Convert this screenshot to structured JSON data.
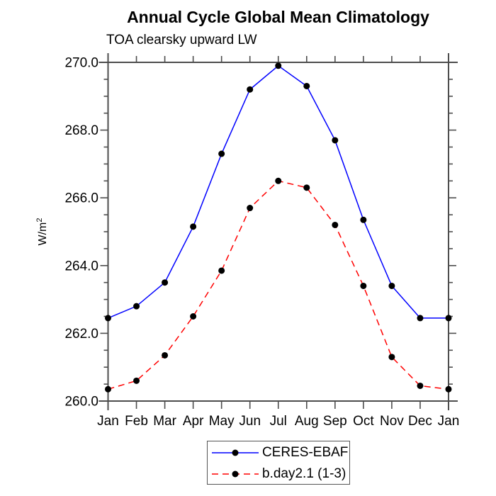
{
  "title": "Annual Cycle Global Mean Climatology",
  "subtitle": "TOA clearsky upward LW",
  "ylabel": {
    "base": "W/m",
    "superscript": "2"
  },
  "colors": {
    "series1": "#0000ff",
    "series2": "#ff0000",
    "marker": "#000000",
    "axis": "#4d4d4d",
    "text": "#000000",
    "background": "#ffffff"
  },
  "legend": {
    "entries": [
      {
        "label": "CERES-EBAF",
        "style": "solid",
        "color": "#0000ff"
      },
      {
        "label": "b.day2.1 (1-3)",
        "style": "dashed",
        "color": "#ff0000"
      }
    ]
  },
  "chart_data": {
    "type": "line",
    "title": "Annual Cycle Global Mean Climatology",
    "subtitle": "TOA clearsky upward LW",
    "xlabel": "",
    "ylabel": "W/m^2",
    "categories": [
      "Jan",
      "Feb",
      "Mar",
      "Apr",
      "May",
      "Jun",
      "Jul",
      "Aug",
      "Sep",
      "Oct",
      "Nov",
      "Dec",
      "Jan"
    ],
    "series": [
      {
        "name": "CERES-EBAF",
        "color": "#0000ff",
        "line_style": "solid",
        "marker": "filled-circle",
        "values": [
          262.45,
          262.8,
          263.5,
          265.15,
          267.3,
          269.2,
          269.9,
          269.3,
          267.7,
          265.35,
          263.4,
          262.45,
          262.45
        ]
      },
      {
        "name": "b.day2.1 (1-3)",
        "color": "#ff0000",
        "line_style": "dashed",
        "marker": "filled-circle",
        "values": [
          260.35,
          260.6,
          261.35,
          262.5,
          263.85,
          265.7,
          266.5,
          266.3,
          265.2,
          263.4,
          261.3,
          260.45,
          260.35
        ]
      }
    ],
    "ylim": [
      260.0,
      270.0
    ],
    "ytick_major": [
      260.0,
      262.0,
      264.0,
      266.0,
      268.0,
      270.0
    ],
    "ytick_labels": [
      "260.0",
      "262.0",
      "264.0",
      "266.0",
      "268.0",
      "270.0"
    ],
    "ytick_minor_step": 0.5,
    "grid": false,
    "legend_position": "bottom-center"
  }
}
